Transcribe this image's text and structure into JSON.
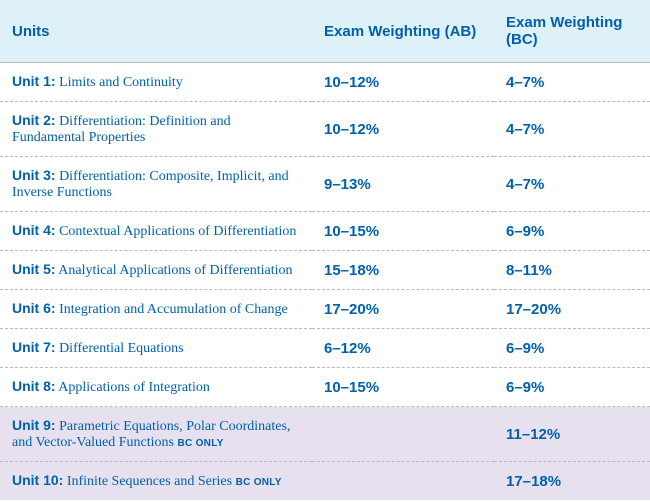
{
  "columns": {
    "units": "Units",
    "ab": "Exam Weighting (AB)",
    "bc": "Exam Weighting (BC)"
  },
  "badge": "BC ONLY",
  "header_bg": "#def0f8",
  "bc_row_bg": "#e7e0ee",
  "text_color": "#0060a9",
  "header_fontsize": 15,
  "body_fontsize": 14,
  "weight_fontsize": 15,
  "badge_fontsize": 10,
  "rows": [
    {
      "unit": "Unit 1:",
      "desc": "Limits and Continuity",
      "ab": "10–12%",
      "bc": "4–7%",
      "bc_only": false
    },
    {
      "unit": "Unit 2:",
      "desc": "Differentiation: Definition and Fundamental Properties",
      "ab": "10–12%",
      "bc": "4–7%",
      "bc_only": false
    },
    {
      "unit": "Unit 3:",
      "desc": "Differentiation: Composite, Implicit, and Inverse Functions",
      "ab": "9–13%",
      "bc": "4–7%",
      "bc_only": false
    },
    {
      "unit": "Unit 4:",
      "desc": "Contextual Applications of Differentiation",
      "ab": "10–15%",
      "bc": "6–9%",
      "bc_only": false
    },
    {
      "unit": "Unit 5:",
      "desc": "Analytical Applications of Differentiation",
      "ab": "15–18%",
      "bc": "8–11%",
      "bc_only": false
    },
    {
      "unit": "Unit 6:",
      "desc": "Integration and Accumulation of Change",
      "ab": "17–20%",
      "bc": "17–20%",
      "bc_only": false
    },
    {
      "unit": "Unit 7:",
      "desc": "Differential Equations",
      "ab": "6–12%",
      "bc": "6–9%",
      "bc_only": false
    },
    {
      "unit": "Unit 8:",
      "desc": "Applications of Integration",
      "ab": "10–15%",
      "bc": "6–9%",
      "bc_only": false
    },
    {
      "unit": "Unit 9:",
      "desc": "Parametric Equations, Polar Coordinates, and Vector-Valued Functions",
      "ab": "",
      "bc": "11–12%",
      "bc_only": true
    },
    {
      "unit": "Unit 10:",
      "desc": "Infinite Sequences and Series",
      "ab": "",
      "bc": "17–18%",
      "bc_only": true
    }
  ]
}
